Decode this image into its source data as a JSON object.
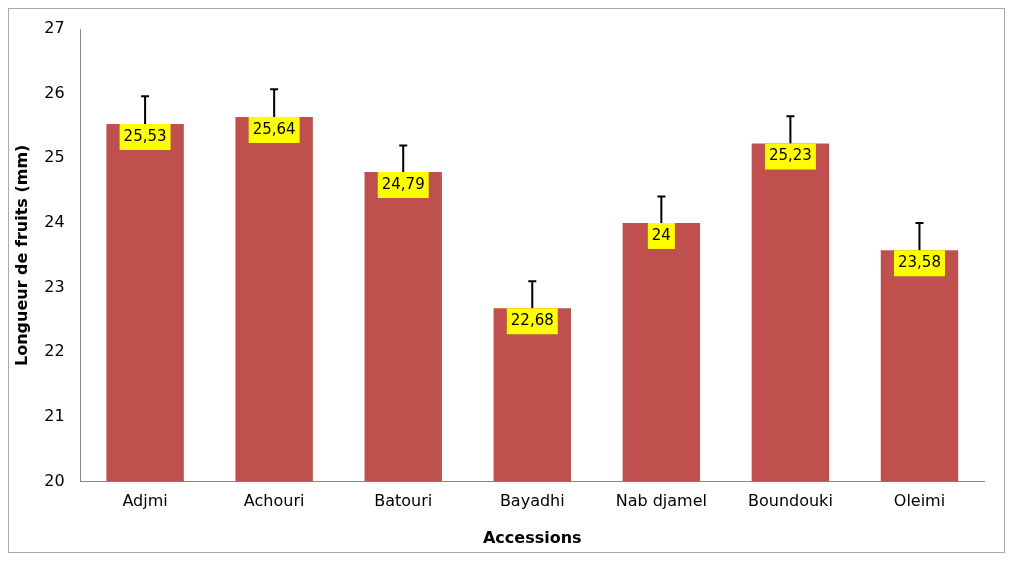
{
  "chart_data": {
    "type": "bar",
    "xlabel": "Accessions",
    "ylabel": "Longueur de fruits (mm)",
    "categories": [
      "Adjmi",
      "Achouri",
      "Batouri",
      "Bayadhi",
      "Nab djamel",
      "Boundouki",
      "Oleimi"
    ],
    "values": [
      25.53,
      25.64,
      24.79,
      22.68,
      24,
      25.23,
      23.58
    ],
    "errors": [
      0.43,
      0.43,
      0.41,
      0.42,
      0.41,
      0.42,
      0.42
    ],
    "value_labels": [
      "25,53",
      "25,64",
      "24,79",
      "22,68",
      "24",
      "25,23",
      "23,58"
    ],
    "color": "#c0504d",
    "ylim": [
      20,
      27
    ],
    "yticks": [
      20,
      21,
      22,
      23,
      24,
      25,
      26,
      27
    ],
    "grid": false,
    "legend": false
  }
}
